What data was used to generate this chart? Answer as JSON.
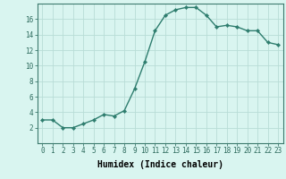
{
  "x": [
    0,
    1,
    2,
    3,
    4,
    5,
    6,
    7,
    8,
    9,
    10,
    11,
    12,
    13,
    14,
    15,
    16,
    17,
    18,
    19,
    20,
    21,
    22,
    23
  ],
  "y": [
    3.0,
    3.0,
    2.0,
    2.0,
    2.5,
    3.0,
    3.7,
    3.5,
    4.2,
    7.0,
    10.5,
    14.5,
    16.5,
    17.2,
    17.5,
    17.5,
    16.5,
    15.0,
    15.2,
    15.0,
    14.5,
    14.5,
    13.0,
    12.7
  ],
  "line_color": "#2e7d6e",
  "marker": "D",
  "marker_size": 2.2,
  "background_color": "#d9f5f0",
  "grid_color": "#b8ddd6",
  "xlabel": "Humidex (Indice chaleur)",
  "ylim": [
    0,
    18
  ],
  "xlim": [
    -0.5,
    23.5
  ],
  "yticks": [
    2,
    4,
    6,
    8,
    10,
    12,
    14,
    16
  ],
  "xticks": [
    0,
    1,
    2,
    3,
    4,
    5,
    6,
    7,
    8,
    9,
    10,
    11,
    12,
    13,
    14,
    15,
    16,
    17,
    18,
    19,
    20,
    21,
    22,
    23
  ],
  "tick_fontsize": 5.5,
  "xlabel_fontsize": 7.0,
  "line_width": 1.0
}
